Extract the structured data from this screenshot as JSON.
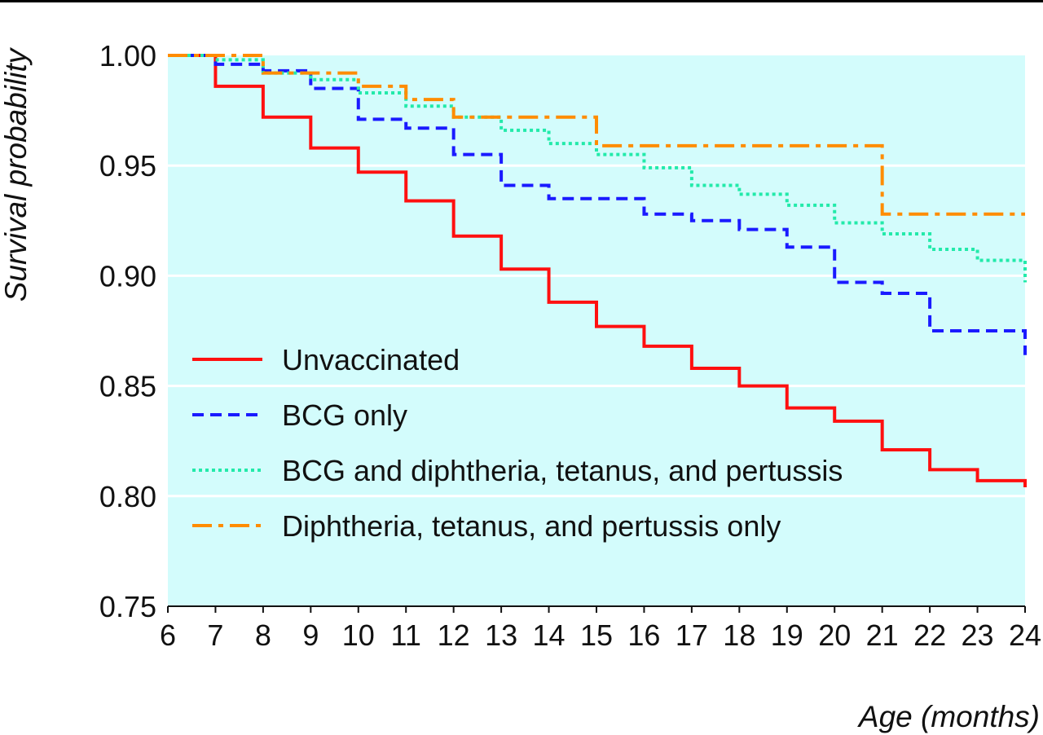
{
  "chart_data": {
    "type": "line",
    "title": "",
    "xlabel": "Age (months)",
    "ylabel": "Survival probability",
    "xlim": [
      6,
      24
    ],
    "ylim": [
      0.75,
      1.0
    ],
    "x_ticks": [
      "6",
      "7",
      "8",
      "9",
      "10",
      "11",
      "12",
      "13",
      "14",
      "15",
      "16",
      "17",
      "18",
      "19",
      "20",
      "21",
      "22",
      "23",
      "24"
    ],
    "y_ticks": [
      "0.75",
      "0.80",
      "0.85",
      "0.90",
      "0.95",
      "1.00"
    ],
    "grid": "horizontal",
    "plot_background": "#d3fcfc",
    "legend_position": "lower-left",
    "series": [
      {
        "name": "Unvaccinated",
        "color": "#ff1010",
        "style": "solid",
        "points": [
          [
            6,
            1.0
          ],
          [
            7,
            0.986
          ],
          [
            8,
            0.972
          ],
          [
            9,
            0.958
          ],
          [
            10,
            0.947
          ],
          [
            11,
            0.934
          ],
          [
            12,
            0.918
          ],
          [
            13,
            0.903
          ],
          [
            14,
            0.888
          ],
          [
            15,
            0.877
          ],
          [
            16,
            0.868
          ],
          [
            17,
            0.858
          ],
          [
            18,
            0.85
          ],
          [
            19,
            0.84
          ],
          [
            20,
            0.834
          ],
          [
            21,
            0.821
          ],
          [
            22,
            0.812
          ],
          [
            23,
            0.807
          ],
          [
            24,
            0.804
          ]
        ]
      },
      {
        "name": "BCG only",
        "color": "#1a1aff",
        "style": "dashed",
        "points": [
          [
            6,
            1.0
          ],
          [
            7,
            0.996
          ],
          [
            8,
            0.993
          ],
          [
            9,
            0.985
          ],
          [
            10,
            0.971
          ],
          [
            11,
            0.967
          ],
          [
            12,
            0.955
          ],
          [
            13,
            0.941
          ],
          [
            14,
            0.935
          ],
          [
            15,
            0.935
          ],
          [
            16,
            0.928
          ],
          [
            17,
            0.925
          ],
          [
            18,
            0.921
          ],
          [
            19,
            0.913
          ],
          [
            20,
            0.897
          ],
          [
            21,
            0.892
          ],
          [
            22,
            0.875
          ],
          [
            23,
            0.875
          ],
          [
            24,
            0.864
          ]
        ]
      },
      {
        "name": "BCG and diphtheria, tetanus, and pertussis",
        "color": "#22eaaa",
        "style": "dotted",
        "points": [
          [
            6,
            1.0
          ],
          [
            7,
            0.998
          ],
          [
            8,
            0.992
          ],
          [
            9,
            0.989
          ],
          [
            10,
            0.983
          ],
          [
            11,
            0.977
          ],
          [
            12,
            0.972
          ],
          [
            13,
            0.966
          ],
          [
            14,
            0.96
          ],
          [
            15,
            0.955
          ],
          [
            16,
            0.949
          ],
          [
            17,
            0.941
          ],
          [
            18,
            0.937
          ],
          [
            19,
            0.932
          ],
          [
            20,
            0.924
          ],
          [
            21,
            0.919
          ],
          [
            22,
            0.912
          ],
          [
            23,
            0.907
          ],
          [
            24,
            0.897
          ]
        ]
      },
      {
        "name": "Diphtheria, tetanus, and pertussis only",
        "color": "#ff8c00",
        "style": "dashdot",
        "points": [
          [
            6,
            1.0
          ],
          [
            7,
            1.0
          ],
          [
            8,
            0.992
          ],
          [
            9,
            0.992
          ],
          [
            10,
            0.986
          ],
          [
            11,
            0.98
          ],
          [
            12,
            0.972
          ],
          [
            13,
            0.972
          ],
          [
            14,
            0.972
          ],
          [
            15,
            0.959
          ],
          [
            16,
            0.959
          ],
          [
            17,
            0.959
          ],
          [
            18,
            0.959
          ],
          [
            19,
            0.959
          ],
          [
            20,
            0.959
          ],
          [
            21,
            0.928
          ],
          [
            22,
            0.928
          ],
          [
            23,
            0.928
          ],
          [
            24,
            0.928
          ]
        ]
      }
    ]
  }
}
